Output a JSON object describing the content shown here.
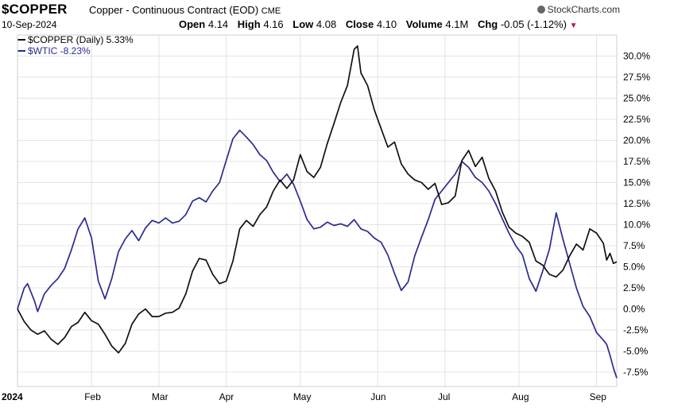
{
  "header": {
    "symbol": "$COPPER",
    "description": "Copper - Continuous Contract (EOD)",
    "exchange": "CME",
    "source": "StockCharts.com",
    "date": "10-Sep-2024",
    "open_label": "Open",
    "open": "4.14",
    "high_label": "High",
    "high": "4.16",
    "low_label": "Low",
    "low": "4.08",
    "close_label": "Close",
    "close": "4.10",
    "volume_label": "Volume",
    "volume": "4.1M",
    "chg_label": "Chg",
    "chg": "-0.05 (-1.12%)"
  },
  "colors": {
    "copper": "#111111",
    "wtic": "#2b2b8f",
    "grid": "#e4e4e4"
  },
  "chart_data": {
    "type": "line",
    "yformat": "percent",
    "ylim": [
      -9.2,
      32.5
    ],
    "yticks": [
      30.0,
      27.5,
      25.0,
      22.5,
      20.0,
      17.5,
      15.0,
      12.5,
      10.0,
      7.5,
      5.0,
      2.5,
      0.0,
      -2.5,
      -5.0,
      -7.5
    ],
    "ytick_labels": [
      "30.0%",
      "27.5%",
      "25.0%",
      "22.5%",
      "20.0%",
      "17.5%",
      "15.0%",
      "12.5%",
      "10.0%",
      "7.5%",
      "5.0%",
      "2.5%",
      "0.0%",
      "-2.5%",
      "-5.0%",
      "-7.5%"
    ],
    "xlim": [
      0,
      178
    ],
    "xticks": [
      {
        "x": 0,
        "label": "2024"
      },
      {
        "x": 22,
        "label": "Feb"
      },
      {
        "x": 42,
        "label": "Mar"
      },
      {
        "x": 62,
        "label": "Apr"
      },
      {
        "x": 84,
        "label": "May"
      },
      {
        "x": 107,
        "label": "Jun"
      },
      {
        "x": 127,
        "label": "Jul"
      },
      {
        "x": 149,
        "label": "Aug"
      },
      {
        "x": 172,
        "label": "Sep"
      }
    ],
    "series": [
      {
        "name": "$COPPER (Daily) 5.33%",
        "color": "#111111",
        "points": [
          [
            0,
            0.0
          ],
          [
            2,
            -1.5
          ],
          [
            4,
            -2.5
          ],
          [
            6,
            -3.0
          ],
          [
            8,
            -2.6
          ],
          [
            10,
            -3.6
          ],
          [
            12,
            -4.2
          ],
          [
            14,
            -3.4
          ],
          [
            16,
            -2.1
          ],
          [
            18,
            -1.6
          ],
          [
            20,
            -0.4
          ],
          [
            22,
            -1.4
          ],
          [
            24,
            -1.8
          ],
          [
            26,
            -3.0
          ],
          [
            28,
            -4.4
          ],
          [
            30,
            -5.2
          ],
          [
            32,
            -4.1
          ],
          [
            34,
            -1.8
          ],
          [
            36,
            -0.6
          ],
          [
            38,
            0.0
          ],
          [
            40,
            -0.9
          ],
          [
            42,
            -0.9
          ],
          [
            44,
            -0.5
          ],
          [
            46,
            -0.4
          ],
          [
            48,
            0.1
          ],
          [
            50,
            1.8
          ],
          [
            52,
            4.5
          ],
          [
            54,
            6.0
          ],
          [
            56,
            5.8
          ],
          [
            58,
            4.1
          ],
          [
            60,
            3.0
          ],
          [
            62,
            3.3
          ],
          [
            64,
            5.7
          ],
          [
            66,
            9.5
          ],
          [
            68,
            10.5
          ],
          [
            70,
            9.8
          ],
          [
            72,
            11.2
          ],
          [
            74,
            12.1
          ],
          [
            76,
            14.0
          ],
          [
            78,
            15.3
          ],
          [
            80,
            14.3
          ],
          [
            82,
            15.3
          ],
          [
            84,
            18.3
          ],
          [
            86,
            16.3
          ],
          [
            88,
            15.6
          ],
          [
            90,
            16.8
          ],
          [
            92,
            19.6
          ],
          [
            94,
            22.0
          ],
          [
            96,
            24.5
          ],
          [
            98,
            26.5
          ],
          [
            100,
            30.8
          ],
          [
            101,
            31.2
          ],
          [
            102,
            28.0
          ],
          [
            104,
            26.5
          ],
          [
            106,
            23.6
          ],
          [
            108,
            21.4
          ],
          [
            110,
            19.2
          ],
          [
            112,
            19.8
          ],
          [
            114,
            17.2
          ],
          [
            116,
            16.0
          ],
          [
            118,
            15.3
          ],
          [
            120,
            15.0
          ],
          [
            122,
            14.2
          ],
          [
            124,
            14.9
          ],
          [
            126,
            12.4
          ],
          [
            128,
            12.6
          ],
          [
            130,
            13.4
          ],
          [
            132,
            17.6
          ],
          [
            134,
            18.8
          ],
          [
            136,
            16.9
          ],
          [
            138,
            18.0
          ],
          [
            140,
            15.5
          ],
          [
            142,
            14.0
          ],
          [
            144,
            11.5
          ],
          [
            146,
            9.7
          ],
          [
            148,
            9.0
          ],
          [
            150,
            8.6
          ],
          [
            152,
            7.9
          ],
          [
            154,
            5.7
          ],
          [
            156,
            5.2
          ],
          [
            158,
            4.1
          ],
          [
            160,
            3.8
          ],
          [
            162,
            4.6
          ],
          [
            164,
            6.3
          ],
          [
            166,
            7.7
          ],
          [
            168,
            7.0
          ],
          [
            170,
            9.5
          ],
          [
            172,
            9.0
          ],
          [
            174,
            7.8
          ],
          [
            175,
            5.8
          ],
          [
            176,
            6.6
          ],
          [
            177,
            5.4
          ],
          [
            178,
            5.6
          ]
        ]
      },
      {
        "name": "$WTIC -8.23%",
        "color": "#2b2b8f",
        "points": [
          [
            0,
            0.0
          ],
          [
            2,
            2.5
          ],
          [
            3,
            3.0
          ],
          [
            4,
            2.0
          ],
          [
            5,
            1.0
          ],
          [
            6,
            -0.3
          ],
          [
            8,
            1.8
          ],
          [
            10,
            2.8
          ],
          [
            12,
            3.6
          ],
          [
            14,
            4.8
          ],
          [
            16,
            7.0
          ],
          [
            18,
            9.5
          ],
          [
            20,
            10.8
          ],
          [
            22,
            8.4
          ],
          [
            24,
            3.3
          ],
          [
            26,
            1.2
          ],
          [
            28,
            3.6
          ],
          [
            30,
            6.8
          ],
          [
            32,
            8.3
          ],
          [
            34,
            9.3
          ],
          [
            36,
            8.1
          ],
          [
            38,
            9.6
          ],
          [
            40,
            10.5
          ],
          [
            42,
            10.2
          ],
          [
            44,
            10.8
          ],
          [
            46,
            10.2
          ],
          [
            48,
            10.4
          ],
          [
            50,
            11.2
          ],
          [
            52,
            12.8
          ],
          [
            54,
            13.2
          ],
          [
            56,
            12.7
          ],
          [
            58,
            14.0
          ],
          [
            60,
            15.0
          ],
          [
            62,
            17.6
          ],
          [
            64,
            20.2
          ],
          [
            66,
            21.2
          ],
          [
            68,
            20.4
          ],
          [
            70,
            19.5
          ],
          [
            72,
            18.3
          ],
          [
            74,
            17.6
          ],
          [
            76,
            16.2
          ],
          [
            78,
            15.1
          ],
          [
            80,
            16.0
          ],
          [
            82,
            14.8
          ],
          [
            84,
            12.8
          ],
          [
            86,
            10.6
          ],
          [
            88,
            9.5
          ],
          [
            90,
            9.7
          ],
          [
            92,
            10.3
          ],
          [
            94,
            9.9
          ],
          [
            96,
            10.1
          ],
          [
            98,
            9.8
          ],
          [
            100,
            10.6
          ],
          [
            102,
            9.5
          ],
          [
            104,
            9.2
          ],
          [
            106,
            8.4
          ],
          [
            108,
            7.9
          ],
          [
            110,
            6.4
          ],
          [
            112,
            4.2
          ],
          [
            114,
            2.2
          ],
          [
            116,
            3.2
          ],
          [
            118,
            6.3
          ],
          [
            120,
            8.5
          ],
          [
            122,
            10.6
          ],
          [
            124,
            13.0
          ],
          [
            126,
            14.0
          ],
          [
            128,
            15.0
          ],
          [
            130,
            16.0
          ],
          [
            132,
            17.5
          ],
          [
            134,
            16.8
          ],
          [
            136,
            15.6
          ],
          [
            138,
            15.0
          ],
          [
            140,
            14.0
          ],
          [
            142,
            12.5
          ],
          [
            144,
            10.7
          ],
          [
            146,
            9.0
          ],
          [
            148,
            7.5
          ],
          [
            150,
            6.4
          ],
          [
            152,
            3.6
          ],
          [
            154,
            2.1
          ],
          [
            156,
            4.5
          ],
          [
            158,
            7.1
          ],
          [
            160,
            11.4
          ],
          [
            162,
            8.3
          ],
          [
            164,
            5.4
          ],
          [
            166,
            2.5
          ],
          [
            168,
            0.3
          ],
          [
            170,
            -0.9
          ],
          [
            172,
            -2.8
          ],
          [
            174,
            -3.7
          ],
          [
            175,
            -4.2
          ],
          [
            176,
            -5.5
          ],
          [
            177,
            -7.0
          ],
          [
            178,
            -8.2
          ]
        ]
      }
    ]
  }
}
